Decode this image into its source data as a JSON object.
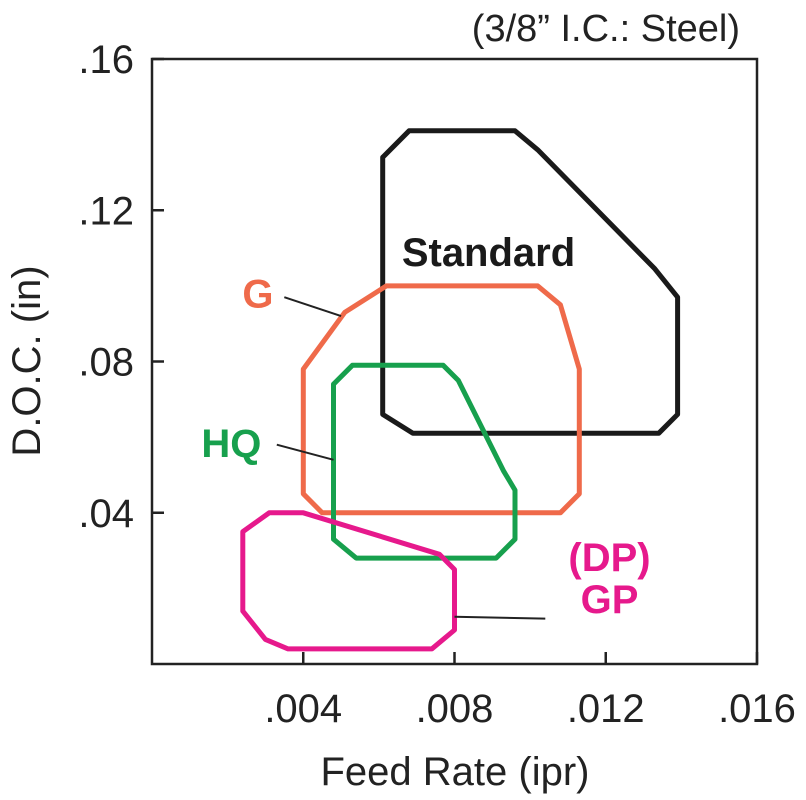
{
  "chart_data": {
    "type": "area",
    "title": "",
    "note": "(3/8” I.C.: Steel)",
    "xlabel": "Feed Rate (ipr)",
    "ylabel": "D.O.C. (in)",
    "xlim": [
      0,
      0.016
    ],
    "ylim": [
      0,
      0.16
    ],
    "xticks": [
      {
        "value": 0.004,
        "label": ".004"
      },
      {
        "value": 0.008,
        "label": ".008"
      },
      {
        "value": 0.012,
        "label": ".012"
      },
      {
        "value": 0.016,
        "label": ".016"
      }
    ],
    "yticks": [
      {
        "value": 0.04,
        "label": ".04"
      },
      {
        "value": 0.08,
        "label": ".08"
      },
      {
        "value": 0.12,
        "label": ".12"
      },
      {
        "value": 0.16,
        "label": ".16"
      }
    ],
    "grid": false,
    "series": [
      {
        "name": "Standard",
        "label_lines": [
          "Standard"
        ],
        "color": "#1a1a1a",
        "outline": [
          [
            0.0061,
            0.134
          ],
          [
            0.0068,
            0.141
          ],
          [
            0.0096,
            0.141
          ],
          [
            0.0102,
            0.136
          ],
          [
            0.0133,
            0.1045
          ],
          [
            0.0139,
            0.097
          ],
          [
            0.0139,
            0.066
          ],
          [
            0.0134,
            0.061
          ],
          [
            0.0069,
            0.061
          ],
          [
            0.0061,
            0.066
          ]
        ],
        "label_at": [
          0.0089,
          0.109
        ],
        "leader": null
      },
      {
        "name": "G",
        "label_lines": [
          "G"
        ],
        "color": "#ef6a4a",
        "outline": [
          [
            0.004,
            0.078
          ],
          [
            0.0051,
            0.093
          ],
          [
            0.0062,
            0.1
          ],
          [
            0.0102,
            0.1
          ],
          [
            0.0108,
            0.095
          ],
          [
            0.0113,
            0.078
          ],
          [
            0.0113,
            0.045
          ],
          [
            0.0108,
            0.04
          ],
          [
            0.0045,
            0.04
          ],
          [
            0.004,
            0.045
          ]
        ],
        "label_at": [
          0.0028,
          0.098
        ],
        "leader": [
          [
            0.0035,
            0.097
          ],
          [
            0.005,
            0.092
          ]
        ]
      },
      {
        "name": "HQ",
        "label_lines": [
          "HQ"
        ],
        "color": "#17a04d",
        "outline": [
          [
            0.0048,
            0.074
          ],
          [
            0.0053,
            0.079
          ],
          [
            0.0077,
            0.079
          ],
          [
            0.0081,
            0.075
          ],
          [
            0.0093,
            0.051
          ],
          [
            0.0096,
            0.046
          ],
          [
            0.0096,
            0.033
          ],
          [
            0.0091,
            0.028
          ],
          [
            0.0054,
            0.028
          ],
          [
            0.0048,
            0.033
          ]
        ],
        "label_at": [
          0.0021,
          0.0585
        ],
        "leader": [
          [
            0.0033,
            0.058
          ],
          [
            0.0048,
            0.054
          ]
        ]
      },
      {
        "name": "GP",
        "label_lines": [
          "(DP)",
          "GP"
        ],
        "color": "#e6198c",
        "outline": [
          [
            0.0024,
            0.035
          ],
          [
            0.0031,
            0.04
          ],
          [
            0.004,
            0.04
          ],
          [
            0.0076,
            0.029
          ],
          [
            0.008,
            0.025
          ],
          [
            0.008,
            0.009
          ],
          [
            0.0074,
            0.004
          ],
          [
            0.0036,
            0.004
          ],
          [
            0.003,
            0.0065
          ],
          [
            0.0024,
            0.014
          ]
        ],
        "label_at": [
          0.0121,
          0.0227
        ],
        "leader": [
          [
            0.008,
            0.0125
          ],
          [
            0.0104,
            0.012
          ]
        ]
      }
    ]
  }
}
